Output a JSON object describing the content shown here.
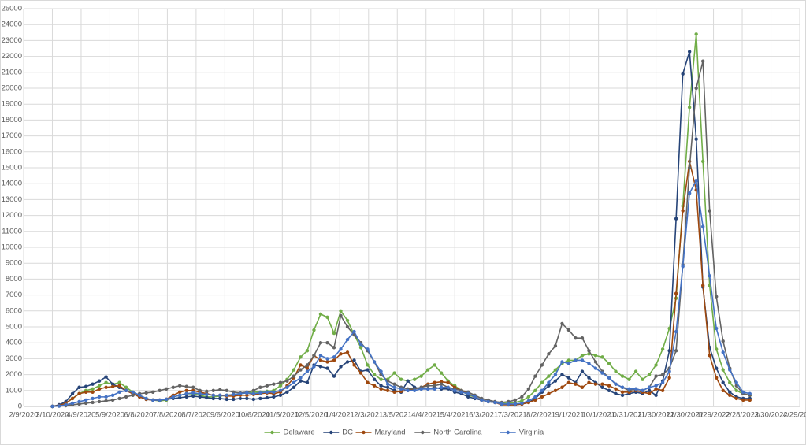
{
  "chart_data": {
    "type": "line",
    "x": [
      "3/10/2020",
      "3/17/2020",
      "3/24/2020",
      "3/31/2020",
      "4/7/2020",
      "4/14/2020",
      "4/21/2020",
      "4/28/2020",
      "5/5/2020",
      "5/12/2020",
      "5/19/2020",
      "5/26/2020",
      "6/2/2020",
      "6/9/2020",
      "6/16/2020",
      "6/23/2020",
      "6/30/2020",
      "7/7/2020",
      "7/14/2020",
      "7/21/2020",
      "7/28/2020",
      "8/4/2020",
      "8/11/2020",
      "8/18/2020",
      "8/25/2020",
      "9/1/2020",
      "9/8/2020",
      "9/15/2020",
      "9/22/2020",
      "9/29/2020",
      "10/6/2020",
      "10/13/2020",
      "10/20/2020",
      "10/27/2020",
      "11/3/2020",
      "11/10/2020",
      "11/17/2020",
      "11/24/2020",
      "12/1/2020",
      "12/8/2020",
      "12/15/2020",
      "12/22/2020",
      "12/29/2020",
      "1/5/2021",
      "1/12/2021",
      "1/19/2021",
      "1/26/2021",
      "2/2/2021",
      "2/9/2021",
      "2/16/2021",
      "2/23/2021",
      "3/2/2021",
      "3/9/2021",
      "3/16/2021",
      "3/23/2021",
      "3/30/2021",
      "4/6/2021",
      "4/13/2021",
      "4/20/2021",
      "4/27/2021",
      "5/4/2021",
      "5/11/2021",
      "5/18/2021",
      "5/25/2021",
      "6/1/2021",
      "6/8/2021",
      "6/15/2021",
      "6/22/2021",
      "6/29/2021",
      "7/6/2021",
      "7/13/2021",
      "7/20/2021",
      "7/27/2021",
      "8/3/2021",
      "8/10/2021",
      "8/17/2021",
      "8/24/2021",
      "8/31/2021",
      "9/7/2021",
      "9/14/2021",
      "9/21/2021",
      "9/28/2021",
      "10/5/2021",
      "10/12/2021",
      "10/19/2021",
      "10/26/2021",
      "11/2/2021",
      "11/9/2021",
      "11/16/2021",
      "11/23/2021",
      "11/30/2021",
      "12/7/2021",
      "12/14/2021",
      "12/21/2021",
      "12/28/2021",
      "1/4/2022",
      "1/11/2022",
      "1/18/2022",
      "1/25/2022",
      "2/1/2022",
      "2/8/2022",
      "2/15/2022",
      "2/22/2022",
      "3/1/2022",
      "3/8/2022"
    ],
    "series": [
      {
        "name": "Delaware",
        "color": "#70ad47",
        "values": [
          0,
          50,
          200,
          500,
          800,
          1000,
          1100,
          1300,
          1500,
          1400,
          1500,
          1200,
          900,
          700,
          500,
          400,
          350,
          400,
          600,
          700,
          800,
          800,
          700,
          600,
          600,
          650,
          700,
          750,
          800,
          850,
          900,
          900,
          950,
          1000,
          1300,
          1700,
          2300,
          3100,
          3500,
          4800,
          5800,
          5600,
          4600,
          6000,
          5400,
          4500,
          3700,
          2600,
          2000,
          1700,
          1700,
          2100,
          1700,
          1600,
          1700,
          1900,
          2300,
          2600,
          2100,
          1600,
          1300,
          1000,
          700,
          600,
          400,
          300,
          250,
          200,
          200,
          250,
          350,
          600,
          1000,
          1500,
          1900,
          2300,
          2700,
          2900,
          2900,
          3200,
          3300,
          3200,
          3100,
          2700,
          2200,
          1900,
          1700,
          2200,
          1700,
          2000,
          2600,
          3600,
          4900,
          6800,
          12600,
          18800,
          23400,
          15400,
          7600,
          3600,
          2300,
          1500,
          1000,
          800,
          700
        ]
      },
      {
        "name": "DC",
        "color": "#264478",
        "values": [
          0,
          100,
          300,
          800,
          1200,
          1250,
          1400,
          1600,
          1850,
          1400,
          1200,
          1000,
          800,
          600,
          450,
          400,
          400,
          450,
          500,
          550,
          600,
          650,
          600,
          550,
          500,
          500,
          450,
          450,
          500,
          500,
          450,
          500,
          550,
          600,
          700,
          900,
          1200,
          1600,
          1500,
          2600,
          2500,
          2400,
          1900,
          2500,
          2800,
          2900,
          2200,
          2300,
          1700,
          1300,
          1200,
          1000,
          900,
          1600,
          1200,
          1100,
          1100,
          1200,
          1100,
          1100,
          900,
          800,
          600,
          500,
          400,
          300,
          250,
          150,
          100,
          100,
          150,
          250,
          500,
          900,
          1300,
          1600,
          2000,
          1800,
          1500,
          2200,
          1800,
          1500,
          1200,
          1000,
          800,
          700,
          800,
          900,
          800,
          1000,
          700,
          1600,
          3500,
          11800,
          20900,
          22300,
          16800,
          7500,
          3700,
          2400,
          1500,
          900,
          600,
          500,
          500
        ]
      },
      {
        "name": "Maryland",
        "color": "#9e480e",
        "values": [
          0,
          50,
          200,
          500,
          800,
          900,
          900,
          1100,
          1200,
          1250,
          1300,
          1000,
          800,
          600,
          450,
          400,
          400,
          450,
          700,
          900,
          1000,
          1000,
          900,
          800,
          700,
          700,
          650,
          650,
          700,
          700,
          750,
          800,
          850,
          800,
          900,
          1300,
          1800,
          2600,
          2400,
          3200,
          2900,
          2800,
          2900,
          3300,
          3400,
          2600,
          2100,
          1500,
          1300,
          1100,
          1000,
          900,
          950,
          1000,
          1100,
          1200,
          1400,
          1500,
          1550,
          1500,
          1200,
          1000,
          800,
          600,
          400,
          300,
          250,
          100,
          100,
          100,
          150,
          250,
          400,
          600,
          800,
          1000,
          1200,
          1500,
          1400,
          1200,
          1500,
          1400,
          1400,
          1300,
          1100,
          900,
          900,
          1000,
          900,
          800,
          1100,
          1000,
          1800,
          7100,
          12300,
          15400,
          13600,
          7600,
          3200,
          1800,
          1000,
          700,
          500,
          400,
          400
        ]
      },
      {
        "name": "North Carolina",
        "color": "#636363",
        "values": [
          0,
          20,
          50,
          100,
          150,
          200,
          250,
          300,
          350,
          400,
          500,
          600,
          700,
          800,
          850,
          900,
          1000,
          1100,
          1200,
          1300,
          1250,
          1200,
          1000,
          950,
          1000,
          1050,
          1000,
          900,
          850,
          900,
          1000,
          1200,
          1300,
          1400,
          1500,
          1600,
          1900,
          2300,
          2600,
          3200,
          4000,
          4000,
          3700,
          5700,
          5000,
          4500,
          4000,
          3500,
          2800,
          2000,
          1600,
          1400,
          1200,
          1100,
          1100,
          1200,
          1300,
          1300,
          1400,
          1200,
          1100,
          1000,
          900,
          700,
          500,
          400,
          300,
          250,
          300,
          400,
          600,
          1100,
          1900,
          2600,
          3300,
          3800,
          5200,
          4800,
          4300,
          4300,
          3500,
          2800,
          2200,
          1800,
          1400,
          1200,
          1000,
          1100,
          1000,
          1200,
          1900,
          2000,
          2400,
          3500,
          8900,
          15000,
          20000,
          21700,
          12300,
          6900,
          4100,
          2400,
          1300,
          800,
          700
        ]
      },
      {
        "name": "Virginia",
        "color": "#4472c4",
        "values": [
          0,
          30,
          100,
          200,
          300,
          400,
          500,
          600,
          600,
          700,
          900,
          1000,
          900,
          700,
          500,
          400,
          400,
          450,
          600,
          700,
          800,
          850,
          800,
          750,
          700,
          700,
          700,
          750,
          800,
          850,
          800,
          850,
          900,
          900,
          1000,
          1200,
          1500,
          1800,
          2200,
          2500,
          3200,
          3000,
          3100,
          3600,
          4200,
          4700,
          3900,
          3600,
          2800,
          2200,
          1400,
          1200,
          1100,
          1000,
          1000,
          1100,
          1100,
          1100,
          1200,
          1200,
          1000,
          900,
          800,
          600,
          400,
          300,
          250,
          150,
          150,
          150,
          200,
          350,
          600,
          1000,
          1500,
          2000,
          2800,
          2700,
          2900,
          2900,
          2700,
          2400,
          2100,
          1800,
          1400,
          1200,
          1100,
          1100,
          1000,
          1200,
          1300,
          1500,
          2200,
          4700,
          8800,
          13400,
          14200,
          11300,
          8200,
          4900,
          3400,
          2300,
          1500,
          900,
          800
        ]
      }
    ],
    "xlim": [
      "2/9/2020",
      "4/29/2022"
    ],
    "xticks": [
      "2/9/2020",
      "3/10/2020",
      "4/9/2020",
      "5/9/2020",
      "6/8/2020",
      "7/8/2020",
      "8/7/2020",
      "9/6/2020",
      "10/6/2020",
      "11/5/2020",
      "12/5/2020",
      "1/4/2021",
      "2/3/2021",
      "3/5/2021",
      "4/4/2021",
      "5/4/2021",
      "6/3/2021",
      "7/3/2021",
      "8/2/2021",
      "9/1/2021",
      "10/1/2021",
      "10/31/2021",
      "11/30/2021",
      "12/30/2021",
      "1/29/2022",
      "2/28/2022",
      "3/30/2022",
      "4/29/2022"
    ],
    "ylim": [
      0,
      25000
    ],
    "yticks": [
      0,
      1000,
      2000,
      3000,
      4000,
      5000,
      6000,
      7000,
      8000,
      9000,
      10000,
      11000,
      12000,
      13000,
      14000,
      15000,
      16000,
      17000,
      18000,
      19000,
      20000,
      21000,
      22000,
      23000,
      24000,
      25000
    ],
    "grid": true,
    "legend": "bottom"
  }
}
